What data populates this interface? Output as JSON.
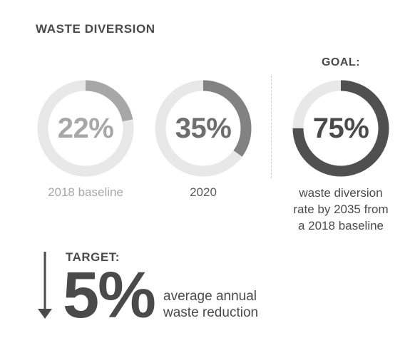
{
  "title": "WASTE DIVERSION",
  "colors": {
    "track": "#e8e8e8",
    "baseline": "#a7a7a7",
    "current": "#828282",
    "goal": "#505050"
  },
  "rings": [
    {
      "percent": 22,
      "value_label": "22%",
      "caption": [
        "2018 baseline"
      ]
    },
    {
      "percent": 35,
      "value_label": "35%",
      "caption": [
        "2020"
      ]
    },
    {
      "percent": 75,
      "value_label": "75%",
      "caption": [
        "waste diversion",
        "rate by 2035 from",
        "a 2018 baseline"
      ]
    }
  ],
  "goal_label": "GOAL:",
  "target": {
    "label": "TARGET:",
    "value": "5%",
    "description": [
      "average annual",
      "waste reduction"
    ]
  },
  "icons": {
    "target_arrow": "down-arrow-icon"
  }
}
